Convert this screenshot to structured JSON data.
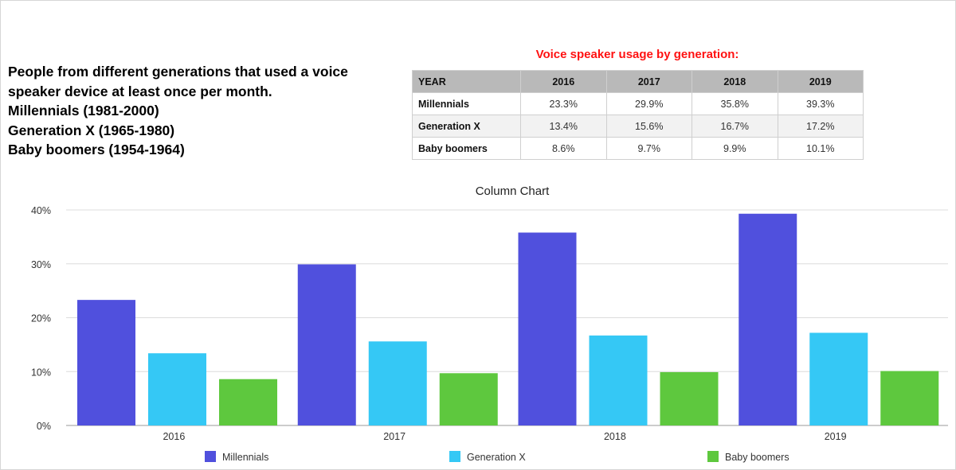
{
  "intro": {
    "lines": [
      "People from different generations that used a voice",
      "speaker device at least once per month.",
      "Millennials (1981-2000)",
      "Generation X (1965-1980)",
      "Baby boomers (1954-1964)"
    ]
  },
  "table": {
    "title": "Voice speaker usage by generation:",
    "header_label": "YEAR",
    "years": [
      "2016",
      "2017",
      "2018",
      "2019"
    ],
    "rows": [
      {
        "label": "Millennials",
        "values": [
          "23.3%",
          "29.9%",
          "35.8%",
          "39.3%"
        ]
      },
      {
        "label": "Generation X",
        "values": [
          "13.4%",
          "15.6%",
          "16.7%",
          "17.2%"
        ]
      },
      {
        "label": "Baby boomers",
        "values": [
          "8.6%",
          "9.7%",
          "9.9%",
          "10.1%"
        ]
      }
    ]
  },
  "chart_data": {
    "type": "bar",
    "title": "Column Chart",
    "categories": [
      "2016",
      "2017",
      "2018",
      "2019"
    ],
    "series": [
      {
        "name": "Millennials",
        "color": "#5050dd",
        "values": [
          23.3,
          29.9,
          35.8,
          39.3
        ]
      },
      {
        "name": "Generation X",
        "color": "#35c8f5",
        "values": [
          13.4,
          15.6,
          16.7,
          17.2
        ]
      },
      {
        "name": "Baby boomers",
        "color": "#5ec83e",
        "values": [
          8.6,
          9.7,
          9.9,
          10.1
        ]
      }
    ],
    "ylim": [
      0,
      40
    ],
    "yticks": [
      0,
      10,
      20,
      30,
      40
    ],
    "ytick_labels": [
      "0%",
      "10%",
      "20%",
      "30%",
      "40%"
    ],
    "xlabel": "",
    "ylabel": "",
    "grid": true,
    "legend": "bottom"
  }
}
